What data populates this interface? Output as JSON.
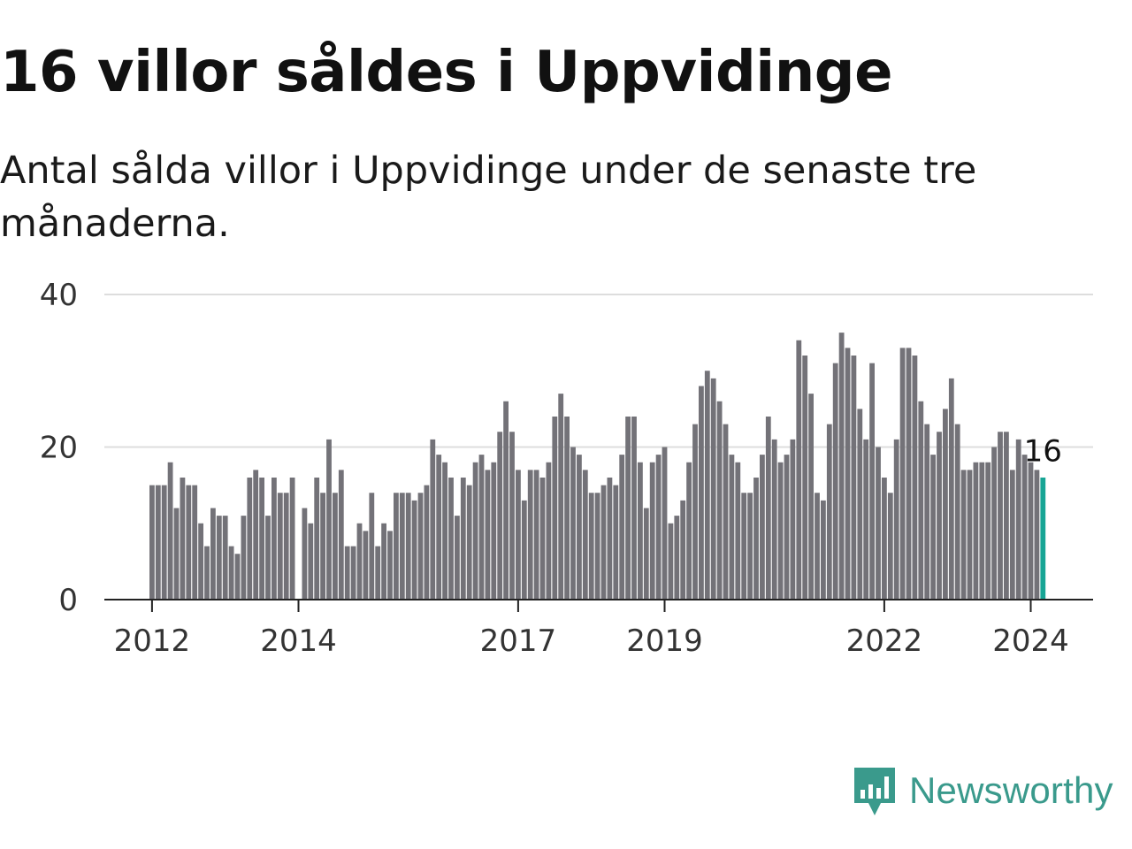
{
  "title": "16 villor såldes i Uppvidinge",
  "subtitle": "Antal sålda villor i Uppvidinge under de senaste tre månaderna.",
  "brand": {
    "name": "Newsworthy",
    "icon": "newsworthy-logo-icon",
    "color": "#3a9a8c"
  },
  "colors": {
    "bar": "#737278",
    "highlight": "#17a595",
    "grid": "#dddddd",
    "axis": "#222222"
  },
  "chart_data": {
    "type": "bar",
    "title": "16 villor såldes i Uppvidinge",
    "subtitle": "Antal sålda villor i Uppvidinge under de senaste tre månaderna.",
    "xlabel": "",
    "ylabel": "",
    "ylim": [
      0,
      40
    ],
    "y_ticks": [
      0,
      20,
      40
    ],
    "grid": true,
    "x_start": "2012-01",
    "x_end": "2024-03",
    "x_tick_labels": [
      {
        "label": "2012",
        "date": "2012-01"
      },
      {
        "label": "2014",
        "date": "2014-01"
      },
      {
        "label": "2017",
        "date": "2017-01"
      },
      {
        "label": "2019",
        "date": "2019-01"
      },
      {
        "label": "2022",
        "date": "2022-01"
      },
      {
        "label": "2024",
        "date": "2024-01"
      }
    ],
    "highlight_label": "16",
    "series": [
      {
        "values": [
          15,
          15,
          15,
          18,
          12,
          16,
          15,
          15,
          10,
          7,
          12,
          11,
          11,
          7,
          6,
          11,
          16,
          17,
          16,
          11,
          16,
          14,
          14,
          16,
          0,
          12,
          10,
          16,
          14,
          21,
          14,
          17,
          7,
          7,
          10,
          9,
          14,
          7,
          10,
          9,
          14,
          14,
          14,
          13,
          14,
          15,
          21,
          19,
          18,
          16,
          11,
          16,
          15,
          18,
          19,
          17,
          18,
          22,
          26,
          22,
          17,
          13,
          17,
          17,
          16,
          18,
          24,
          27,
          24,
          20,
          19,
          17,
          14,
          14,
          15,
          16,
          15,
          19,
          24,
          24,
          18,
          12,
          18,
          19,
          20,
          10,
          11,
          13,
          18,
          23,
          28,
          30,
          29,
          26,
          23,
          19,
          18,
          14,
          14,
          16,
          19,
          24,
          21,
          18,
          19,
          21,
          34,
          32,
          27,
          14,
          13,
          23,
          31,
          35,
          33,
          32,
          25,
          21,
          31,
          20,
          16,
          14,
          21,
          33,
          33,
          32,
          26,
          23,
          19,
          22,
          25,
          29,
          23,
          17,
          17,
          18,
          18,
          18,
          20,
          22,
          22,
          17,
          21,
          19,
          18,
          17,
          16
        ]
      }
    ]
  }
}
